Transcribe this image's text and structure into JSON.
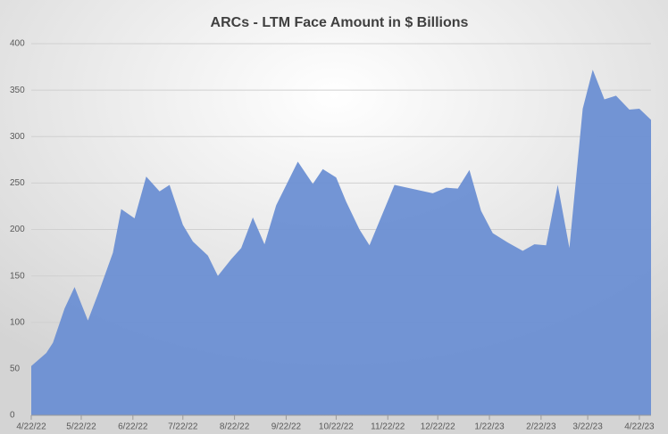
{
  "chart_data": {
    "type": "area",
    "title": "ARCs - LTM Face Amount in $ Billions",
    "x": [
      "4/22/22",
      "5/1/22",
      "5/5/22",
      "5/12/22",
      "5/18/22",
      "5/26/22",
      "6/2/22",
      "6/10/22",
      "6/15/22",
      "6/23/22",
      "6/30/22",
      "7/8/22",
      "7/14/22",
      "7/22/22",
      "7/28/22",
      "8/6/22",
      "8/12/22",
      "8/20/22",
      "8/26/22",
      "9/2/22",
      "9/9/22",
      "9/16/22",
      "9/29/22",
      "10/8/22",
      "10/14/22",
      "10/22/22",
      "10/28/22",
      "11/5/22",
      "11/11/22",
      "11/26/22",
      "12/19/22",
      "12/27/22",
      "1/3/23",
      "1/10/23",
      "1/17/23",
      "1/24/23",
      "2/2/23",
      "2/11/23",
      "2/18/23",
      "2/25/23",
      "3/4/23",
      "3/11/23",
      "3/19/23",
      "3/25/23",
      "4/1/23",
      "4/8/23",
      "4/16/23",
      "4/22/23",
      "4/29/23"
    ],
    "series": [
      {
        "name": "ARCs",
        "color": "#6b8fd3",
        "values": [
          53,
          67,
          78,
          115,
          138,
          102,
          135,
          175,
          222,
          212,
          257,
          241,
          248,
          205,
          187,
          172,
          150,
          168,
          180,
          213,
          184,
          226,
          273,
          249,
          265,
          256,
          230,
          200,
          183,
          248,
          239,
          245,
          244,
          264,
          220,
          196,
          186,
          177,
          184,
          183,
          248,
          180,
          330,
          372,
          340,
          344,
          329,
          330,
          318
        ]
      }
    ],
    "xlim": [
      "4/22/22",
      "4/29/23"
    ],
    "xticks": [
      "4/22/22",
      "5/22/22",
      "6/22/22",
      "7/22/22",
      "8/22/22",
      "9/22/22",
      "10/22/22",
      "11/22/22",
      "12/22/22",
      "1/22/23",
      "2/22/23",
      "3/22/23",
      "4/22/23"
    ],
    "ylim": [
      0,
      400
    ],
    "yticks": [
      0,
      50,
      100,
      150,
      200,
      250,
      300,
      350,
      400
    ],
    "grid": true
  }
}
